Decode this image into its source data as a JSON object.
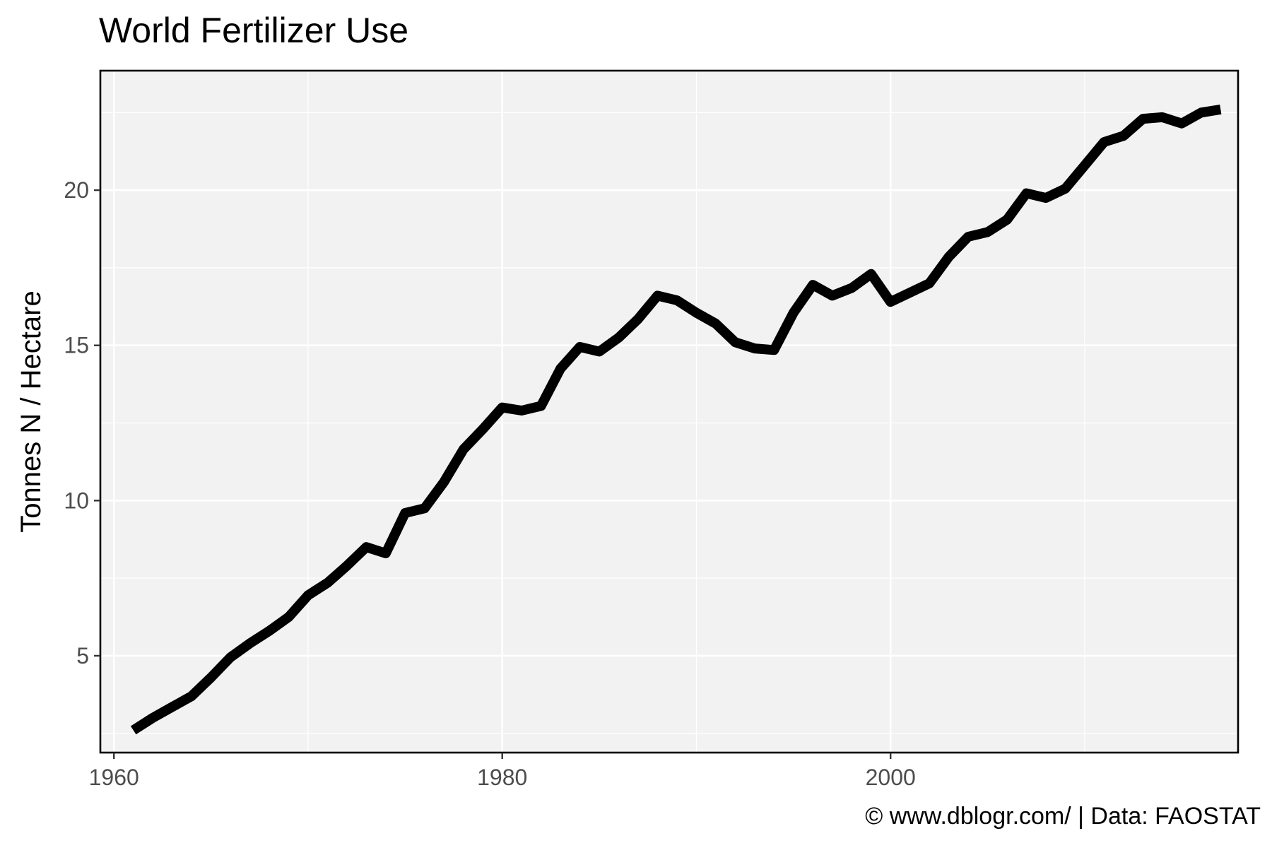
{
  "chart_data": {
    "type": "line",
    "title": "World Fertilizer Use",
    "xlabel": "",
    "ylabel": "Tonnes N / Hectare",
    "caption": "© www.dblogr.com/ | Data: FAOSTAT",
    "xlim": [
      1959.3,
      2017.9
    ],
    "ylim": [
      1.88,
      23.85
    ],
    "x_ticks": [
      1960,
      1980,
      2000
    ],
    "x_tick_labels": [
      "1960",
      "1980",
      "2000"
    ],
    "y_ticks": [
      5,
      10,
      15,
      20
    ],
    "y_tick_labels": [
      "5",
      "10",
      "15",
      "20"
    ],
    "grid": true,
    "legend": "none",
    "colors": {
      "panel": "#f2f2f2",
      "grid": "#ffffff",
      "line": "#000000",
      "border": "#000000"
    },
    "series": [
      {
        "x": [
          1961,
          1962,
          1963,
          1964,
          1965,
          1966,
          1967,
          1968,
          1969,
          1970,
          1971,
          1972,
          1973,
          1974,
          1975,
          1976,
          1977,
          1978,
          1979,
          1980,
          1981,
          1982,
          1983,
          1984,
          1985,
          1986,
          1987,
          1988,
          1989,
          1990,
          1991,
          1992,
          1993,
          1994,
          1995,
          1996,
          1997,
          1998,
          1999,
          2000,
          2001,
          2002,
          2003,
          2004,
          2005,
          2006,
          2007,
          2008,
          2009,
          2010,
          2011,
          2012,
          2013,
          2014,
          2015,
          2016,
          2017
        ],
        "y": [
          2.6,
          3.0,
          3.35,
          3.7,
          4.3,
          4.95,
          5.4,
          5.8,
          6.25,
          6.95,
          7.35,
          7.9,
          8.5,
          8.3,
          9.6,
          9.75,
          10.6,
          11.65,
          12.3,
          13.0,
          12.9,
          13.05,
          14.25,
          14.95,
          14.8,
          15.25,
          15.85,
          16.6,
          16.45,
          16.05,
          15.7,
          15.1,
          14.9,
          14.85,
          16.05,
          16.95,
          16.6,
          16.85,
          17.3,
          16.4,
          16.7,
          17.0,
          17.85,
          18.5,
          18.65,
          19.05,
          19.9,
          19.75,
          20.05,
          20.8,
          21.55,
          21.75,
          22.3,
          22.35,
          22.15,
          22.5,
          22.6
        ]
      }
    ]
  }
}
